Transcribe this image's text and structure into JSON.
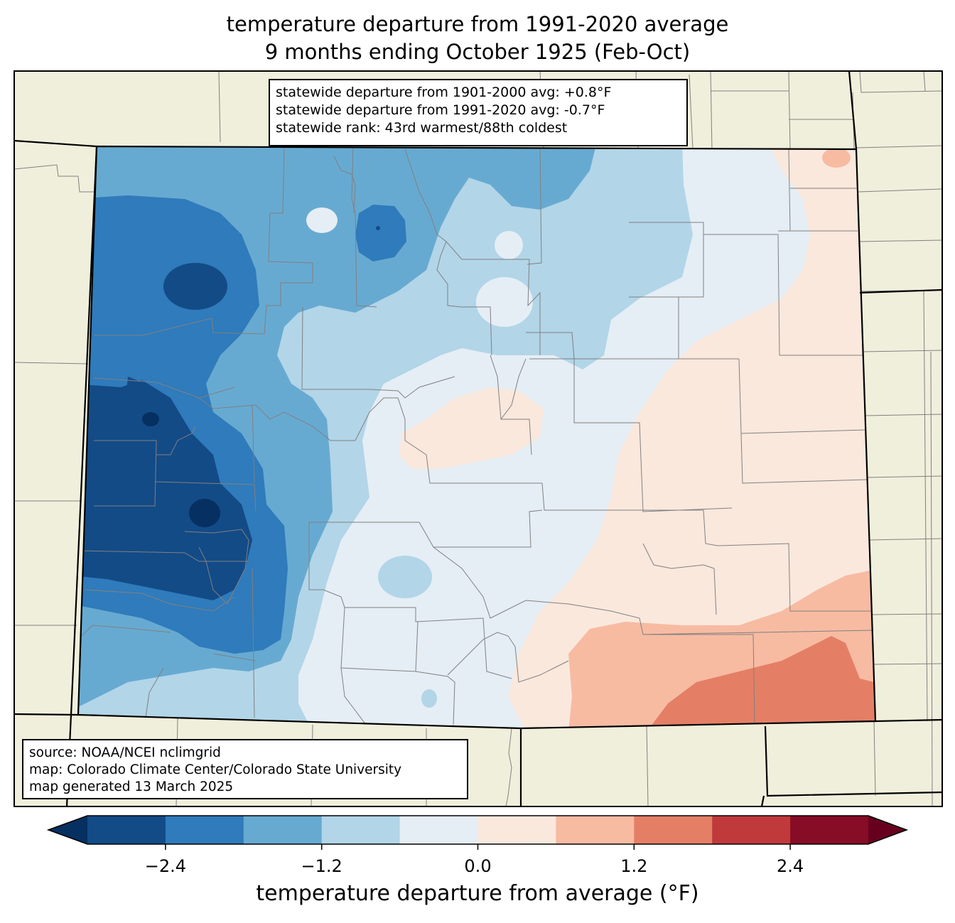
{
  "title": {
    "line1": "temperature departure from 1991-2020 average",
    "line2": "9 months ending October 1925 (Feb-Oct)"
  },
  "stats": {
    "line1": "statewide departure from 1901-2000 avg: +0.8°F",
    "line2": "statewide departure from 1991-2020 avg: -0.7°F",
    "line3": "statewide rank: 43rd warmest/88th coldest"
  },
  "source": {
    "line1": "source: NOAA/NCEI nclimgrid",
    "line2": "map: Colorado Climate Center/Colorado State University",
    "line3": "map generated 13 March 2025"
  },
  "colorbar": {
    "label": "temperature departure from average (°F)",
    "ticks": [
      "−2.4",
      "−1.2",
      "0.0",
      "1.2",
      "2.4"
    ],
    "bins": [
      -3.0,
      -2.4,
      -1.8,
      -1.2,
      -0.6,
      0.0,
      0.6,
      1.2,
      1.8,
      2.4,
      3.0
    ],
    "colors": [
      "#134b87",
      "#2f7bbb",
      "#67aad1",
      "#b2d5e8",
      "#e5eef5",
      "#fae8dd",
      "#f7bba2",
      "#e47f66",
      "#c03a3c",
      "#870c25"
    ],
    "under_color": "#053061",
    "over_color": "#67001f"
  },
  "colors": {
    "land": "#f0efdc",
    "county_line": "#808080",
    "state_line": "#000000"
  }
}
